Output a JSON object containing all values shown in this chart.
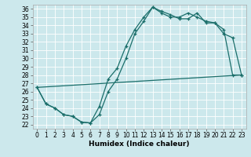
{
  "title": "",
  "xlabel": "Humidex (Indice chaleur)",
  "xlim": [
    -0.5,
    23.5
  ],
  "ylim": [
    21.5,
    36.5
  ],
  "xticks": [
    0,
    1,
    2,
    3,
    4,
    5,
    6,
    7,
    8,
    9,
    10,
    11,
    12,
    13,
    14,
    15,
    16,
    17,
    18,
    19,
    20,
    21,
    22,
    23
  ],
  "yticks": [
    22,
    23,
    24,
    25,
    26,
    27,
    28,
    29,
    30,
    31,
    32,
    33,
    34,
    35,
    36
  ],
  "bg_color": "#cce8ec",
  "grid_color": "#b0d8de",
  "line_color": "#1a6e6a",
  "line1_x": [
    0,
    1,
    2,
    3,
    4,
    5,
    6,
    7,
    8,
    9,
    10,
    11,
    12,
    13,
    14,
    15,
    16,
    17,
    18,
    19,
    20,
    21,
    22,
    23
  ],
  "line1_y": [
    26.5,
    24.5,
    24.0,
    23.2,
    23.0,
    22.3,
    22.2,
    23.2,
    26.0,
    27.5,
    30.0,
    33.0,
    34.5,
    36.2,
    35.7,
    35.3,
    34.8,
    34.8,
    35.5,
    34.3,
    34.3,
    33.5,
    28.0,
    28.0
  ],
  "line2_x": [
    0,
    1,
    2,
    3,
    4,
    5,
    6,
    7,
    8,
    9,
    10,
    11,
    12,
    13,
    14,
    15,
    16,
    17,
    18,
    19,
    20,
    21,
    22,
    23
  ],
  "line2_y": [
    26.5,
    24.5,
    24.0,
    23.2,
    23.0,
    22.3,
    22.2,
    24.2,
    27.5,
    28.8,
    31.5,
    33.5,
    35.0,
    36.2,
    35.5,
    35.0,
    35.0,
    35.5,
    35.0,
    34.5,
    34.3,
    33.0,
    32.5,
    28.0
  ],
  "line3_x": [
    0,
    23
  ],
  "line3_y": [
    26.5,
    28.0
  ],
  "tick_fontsize": 5.5,
  "xlabel_fontsize": 6.5
}
